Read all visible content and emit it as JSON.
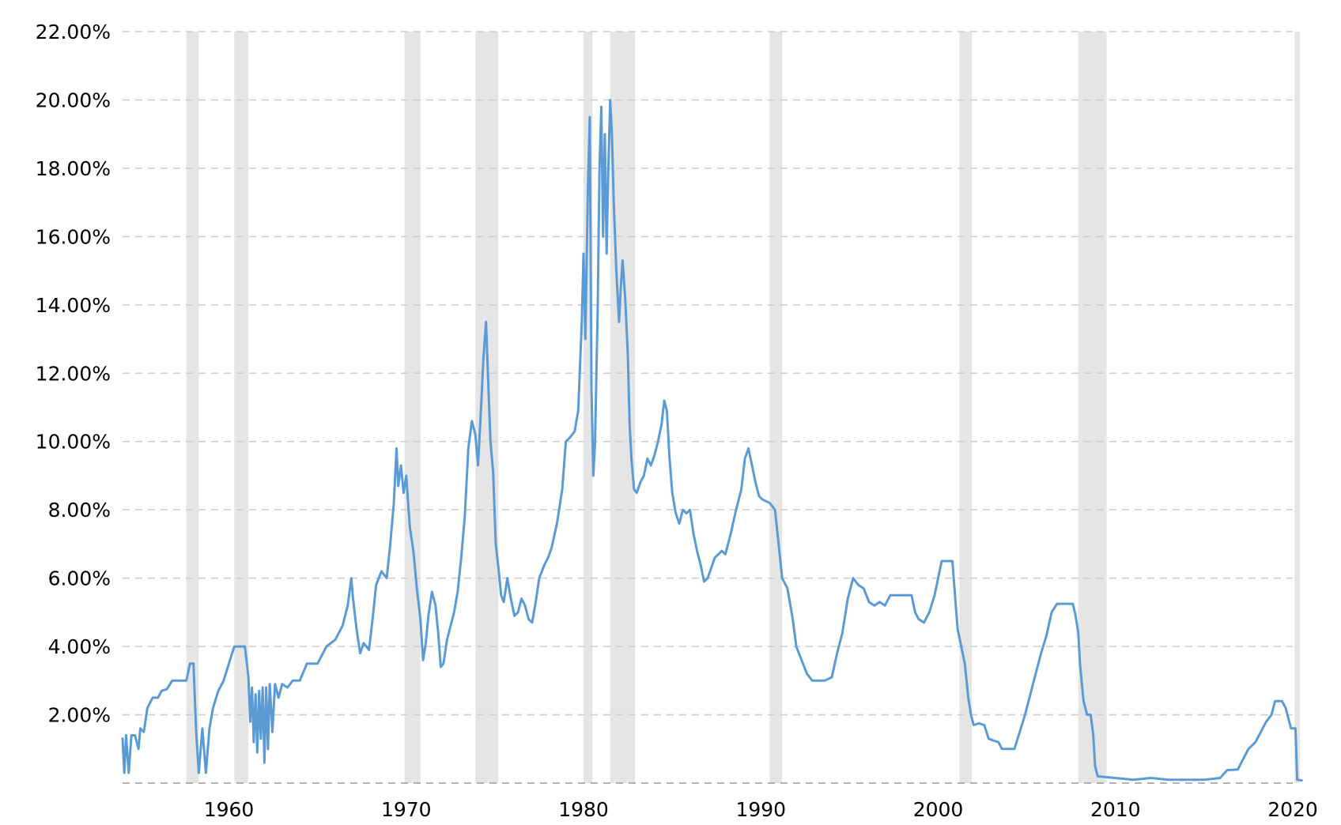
{
  "chart_data": {
    "type": "line",
    "title": "",
    "xlabel": "",
    "ylabel": "",
    "x_axis": {
      "type": "year",
      "range": [
        1954.0,
        2020.0
      ],
      "tick_labels": [
        "1960",
        "1970",
        "1980",
        "1990",
        "2000",
        "2010",
        "2020"
      ],
      "ticks": [
        1960,
        1970,
        1980,
        1990,
        2000,
        2010,
        2020
      ]
    },
    "y_axis": {
      "range": [
        0,
        22
      ],
      "tick_labels": [
        "2.00%",
        "4.00%",
        "6.00%",
        "8.00%",
        "10.00%",
        "12.00%",
        "14.00%",
        "16.00%",
        "18.00%",
        "20.00%",
        "22.00%"
      ],
      "ticks": [
        2,
        4,
        6,
        8,
        10,
        12,
        14,
        16,
        18,
        20,
        22
      ]
    },
    "grid": {
      "horizontal": true,
      "style": "dashed"
    },
    "legend": "none",
    "colors": {
      "line": "#5b9bd5",
      "recession_band": "#e5e5e5",
      "grid": "#cccccc",
      "baseline": "#999999"
    },
    "recession_bands": [
      [
        1957.6,
        1958.3
      ],
      [
        1960.3,
        1961.1
      ],
      [
        1969.9,
        1970.8
      ],
      [
        1973.9,
        1975.2
      ],
      [
        1980.0,
        1980.5
      ],
      [
        1981.5,
        1982.9
      ],
      [
        1990.5,
        1991.2
      ],
      [
        2001.2,
        2001.9
      ],
      [
        2007.9,
        2009.5
      ],
      [
        2020.1,
        2020.4
      ]
    ],
    "series": [
      {
        "values": [
          [
            1954.0,
            1.3
          ],
          [
            1954.1,
            0.3
          ],
          [
            1954.2,
            1.4
          ],
          [
            1954.35,
            0.3
          ],
          [
            1954.5,
            1.4
          ],
          [
            1954.7,
            1.4
          ],
          [
            1954.9,
            1.0
          ],
          [
            1955.0,
            1.6
          ],
          [
            1955.2,
            1.5
          ],
          [
            1955.4,
            2.2
          ],
          [
            1955.7,
            2.5
          ],
          [
            1956.0,
            2.5
          ],
          [
            1956.2,
            2.7
          ],
          [
            1956.5,
            2.75
          ],
          [
            1956.8,
            3.0
          ],
          [
            1957.2,
            3.0
          ],
          [
            1957.6,
            3.0
          ],
          [
            1957.8,
            3.5
          ],
          [
            1958.0,
            3.5
          ],
          [
            1958.15,
            1.5
          ],
          [
            1958.3,
            0.3
          ],
          [
            1958.5,
            1.6
          ],
          [
            1958.7,
            0.3
          ],
          [
            1958.9,
            1.6
          ],
          [
            1959.1,
            2.2
          ],
          [
            1959.4,
            2.7
          ],
          [
            1959.7,
            3.0
          ],
          [
            1960.0,
            3.5
          ],
          [
            1960.3,
            4.0
          ],
          [
            1960.9,
            4.0
          ],
          [
            1961.1,
            3.1
          ],
          [
            1961.2,
            1.8
          ],
          [
            1961.3,
            2.8
          ],
          [
            1961.4,
            1.2
          ],
          [
            1961.5,
            2.6
          ],
          [
            1961.6,
            0.9
          ],
          [
            1961.7,
            2.7
          ],
          [
            1961.8,
            1.3
          ],
          [
            1961.9,
            2.8
          ],
          [
            1962.0,
            0.6
          ],
          [
            1962.1,
            2.8
          ],
          [
            1962.2,
            1.0
          ],
          [
            1962.3,
            2.9
          ],
          [
            1962.45,
            1.5
          ],
          [
            1962.6,
            2.9
          ],
          [
            1962.8,
            2.5
          ],
          [
            1963.0,
            2.9
          ],
          [
            1963.3,
            2.8
          ],
          [
            1963.6,
            3.0
          ],
          [
            1964.0,
            3.0
          ],
          [
            1964.4,
            3.5
          ],
          [
            1965.0,
            3.5
          ],
          [
            1965.5,
            4.0
          ],
          [
            1966.0,
            4.2
          ],
          [
            1966.4,
            4.6
          ],
          [
            1966.7,
            5.2
          ],
          [
            1966.9,
            6.0
          ],
          [
            1967.0,
            5.4
          ],
          [
            1967.2,
            4.5
          ],
          [
            1967.4,
            3.8
          ],
          [
            1967.6,
            4.1
          ],
          [
            1967.9,
            3.9
          ],
          [
            1968.1,
            4.8
          ],
          [
            1968.3,
            5.8
          ],
          [
            1968.6,
            6.2
          ],
          [
            1968.9,
            6.0
          ],
          [
            1969.1,
            7.0
          ],
          [
            1969.3,
            8.2
          ],
          [
            1969.45,
            9.8
          ],
          [
            1969.55,
            8.7
          ],
          [
            1969.7,
            9.3
          ],
          [
            1969.85,
            8.5
          ],
          [
            1970.0,
            9.0
          ],
          [
            1970.2,
            7.5
          ],
          [
            1970.4,
            6.8
          ],
          [
            1970.6,
            5.7
          ],
          [
            1970.8,
            4.8
          ],
          [
            1970.95,
            3.6
          ],
          [
            1971.1,
            4.1
          ],
          [
            1971.25,
            4.9
          ],
          [
            1971.45,
            5.6
          ],
          [
            1971.65,
            5.2
          ],
          [
            1971.8,
            4.4
          ],
          [
            1971.95,
            3.4
          ],
          [
            1972.1,
            3.5
          ],
          [
            1972.3,
            4.2
          ],
          [
            1972.5,
            4.6
          ],
          [
            1972.7,
            5.0
          ],
          [
            1972.9,
            5.6
          ],
          [
            1973.1,
            6.6
          ],
          [
            1973.3,
            7.8
          ],
          [
            1973.5,
            9.8
          ],
          [
            1973.7,
            10.6
          ],
          [
            1973.9,
            10.2
          ],
          [
            1974.05,
            9.3
          ],
          [
            1974.2,
            10.8
          ],
          [
            1974.35,
            12.4
          ],
          [
            1974.5,
            13.5
          ],
          [
            1974.6,
            12.1
          ],
          [
            1974.75,
            10.0
          ],
          [
            1974.9,
            9.1
          ],
          [
            1975.05,
            7.0
          ],
          [
            1975.2,
            6.3
          ],
          [
            1975.35,
            5.5
          ],
          [
            1975.5,
            5.3
          ],
          [
            1975.7,
            6.0
          ],
          [
            1975.9,
            5.4
          ],
          [
            1976.1,
            4.9
          ],
          [
            1976.3,
            5.0
          ],
          [
            1976.5,
            5.4
          ],
          [
            1976.7,
            5.2
          ],
          [
            1976.9,
            4.8
          ],
          [
            1977.1,
            4.7
          ],
          [
            1977.3,
            5.3
          ],
          [
            1977.5,
            6.0
          ],
          [
            1977.8,
            6.4
          ],
          [
            1978.0,
            6.6
          ],
          [
            1978.2,
            6.9
          ],
          [
            1978.5,
            7.6
          ],
          [
            1978.8,
            8.6
          ],
          [
            1979.0,
            10.0
          ],
          [
            1979.2,
            10.1
          ],
          [
            1979.5,
            10.3
          ],
          [
            1979.7,
            10.9
          ],
          [
            1979.9,
            13.5
          ],
          [
            1980.0,
            15.5
          ],
          [
            1980.1,
            13.0
          ],
          [
            1980.25,
            17.5
          ],
          [
            1980.35,
            19.5
          ],
          [
            1980.45,
            11.5
          ],
          [
            1980.55,
            9.0
          ],
          [
            1980.65,
            10.0
          ],
          [
            1980.8,
            14.0
          ],
          [
            1980.9,
            18.0
          ],
          [
            1981.0,
            19.8
          ],
          [
            1981.1,
            16.0
          ],
          [
            1981.2,
            19.0
          ],
          [
            1981.3,
            15.5
          ],
          [
            1981.4,
            18.0
          ],
          [
            1981.5,
            20.0
          ],
          [
            1981.6,
            19.0
          ],
          [
            1981.7,
            17.0
          ],
          [
            1981.85,
            15.0
          ],
          [
            1982.0,
            13.5
          ],
          [
            1982.1,
            14.5
          ],
          [
            1982.2,
            15.3
          ],
          [
            1982.35,
            14.2
          ],
          [
            1982.5,
            12.5
          ],
          [
            1982.6,
            10.5
          ],
          [
            1982.7,
            9.5
          ],
          [
            1982.85,
            8.6
          ],
          [
            1983.0,
            8.5
          ],
          [
            1983.2,
            8.8
          ],
          [
            1983.4,
            9.0
          ],
          [
            1983.6,
            9.5
          ],
          [
            1983.8,
            9.3
          ],
          [
            1984.0,
            9.6
          ],
          [
            1984.2,
            10.0
          ],
          [
            1984.4,
            10.5
          ],
          [
            1984.55,
            11.2
          ],
          [
            1984.7,
            10.9
          ],
          [
            1984.85,
            9.5
          ],
          [
            1985.0,
            8.5
          ],
          [
            1985.2,
            7.9
          ],
          [
            1985.4,
            7.6
          ],
          [
            1985.6,
            8.0
          ],
          [
            1985.8,
            7.9
          ],
          [
            1986.0,
            8.0
          ],
          [
            1986.2,
            7.3
          ],
          [
            1986.4,
            6.8
          ],
          [
            1986.6,
            6.4
          ],
          [
            1986.8,
            5.9
          ],
          [
            1987.0,
            6.0
          ],
          [
            1987.2,
            6.3
          ],
          [
            1987.4,
            6.6
          ],
          [
            1987.6,
            6.7
          ],
          [
            1987.8,
            6.8
          ],
          [
            1988.0,
            6.7
          ],
          [
            1988.3,
            7.3
          ],
          [
            1988.6,
            8.0
          ],
          [
            1988.9,
            8.6
          ],
          [
            1989.1,
            9.5
          ],
          [
            1989.3,
            9.8
          ],
          [
            1989.5,
            9.3
          ],
          [
            1989.7,
            8.8
          ],
          [
            1989.9,
            8.4
          ],
          [
            1990.1,
            8.3
          ],
          [
            1990.5,
            8.2
          ],
          [
            1990.8,
            8.0
          ],
          [
            1991.0,
            7.0
          ],
          [
            1991.2,
            6.0
          ],
          [
            1991.5,
            5.7
          ],
          [
            1991.8,
            4.8
          ],
          [
            1992.0,
            4.0
          ],
          [
            1992.3,
            3.6
          ],
          [
            1992.6,
            3.2
          ],
          [
            1992.9,
            3.0
          ],
          [
            1993.2,
            3.0
          ],
          [
            1993.6,
            3.0
          ],
          [
            1994.0,
            3.1
          ],
          [
            1994.3,
            3.8
          ],
          [
            1994.6,
            4.4
          ],
          [
            1994.9,
            5.4
          ],
          [
            1995.2,
            6.0
          ],
          [
            1995.5,
            5.8
          ],
          [
            1995.8,
            5.7
          ],
          [
            1996.1,
            5.3
          ],
          [
            1996.4,
            5.2
          ],
          [
            1996.7,
            5.3
          ],
          [
            1997.0,
            5.2
          ],
          [
            1997.3,
            5.5
          ],
          [
            1997.6,
            5.5
          ],
          [
            1997.9,
            5.5
          ],
          [
            1998.2,
            5.5
          ],
          [
            1998.5,
            5.5
          ],
          [
            1998.7,
            5.0
          ],
          [
            1998.9,
            4.8
          ],
          [
            1999.2,
            4.7
          ],
          [
            1999.5,
            5.0
          ],
          [
            1999.8,
            5.5
          ],
          [
            2000.0,
            6.0
          ],
          [
            2000.2,
            6.5
          ],
          [
            2000.5,
            6.5
          ],
          [
            2000.8,
            6.5
          ],
          [
            2000.95,
            5.5
          ],
          [
            2001.1,
            4.5
          ],
          [
            2001.3,
            4.0
          ],
          [
            2001.5,
            3.5
          ],
          [
            2001.7,
            2.5
          ],
          [
            2001.85,
            2.0
          ],
          [
            2002.0,
            1.7
          ],
          [
            2002.3,
            1.75
          ],
          [
            2002.6,
            1.7
          ],
          [
            2002.85,
            1.3
          ],
          [
            2003.1,
            1.25
          ],
          [
            2003.4,
            1.2
          ],
          [
            2003.6,
            1.0
          ],
          [
            2003.9,
            1.0
          ],
          [
            2004.3,
            1.0
          ],
          [
            2004.6,
            1.5
          ],
          [
            2004.9,
            2.0
          ],
          [
            2005.2,
            2.6
          ],
          [
            2005.5,
            3.2
          ],
          [
            2005.8,
            3.8
          ],
          [
            2006.1,
            4.3
          ],
          [
            2006.4,
            5.0
          ],
          [
            2006.7,
            5.25
          ],
          [
            2007.0,
            5.25
          ],
          [
            2007.3,
            5.25
          ],
          [
            2007.6,
            5.25
          ],
          [
            2007.75,
            4.9
          ],
          [
            2007.9,
            4.4
          ],
          [
            2008.0,
            3.5
          ],
          [
            2008.2,
            2.4
          ],
          [
            2008.4,
            2.0
          ],
          [
            2008.6,
            2.0
          ],
          [
            2008.75,
            1.4
          ],
          [
            2008.85,
            0.5
          ],
          [
            2009.0,
            0.2
          ],
          [
            2010.0,
            0.15
          ],
          [
            2011.0,
            0.1
          ],
          [
            2012.0,
            0.15
          ],
          [
            2013.0,
            0.1
          ],
          [
            2014.0,
            0.1
          ],
          [
            2015.0,
            0.1
          ],
          [
            2015.9,
            0.15
          ],
          [
            2016.3,
            0.38
          ],
          [
            2016.9,
            0.4
          ],
          [
            2017.2,
            0.7
          ],
          [
            2017.5,
            1.0
          ],
          [
            2017.9,
            1.2
          ],
          [
            2018.2,
            1.5
          ],
          [
            2018.5,
            1.8
          ],
          [
            2018.8,
            2.0
          ],
          [
            2019.0,
            2.4
          ],
          [
            2019.4,
            2.4
          ],
          [
            2019.6,
            2.2
          ],
          [
            2019.75,
            1.9
          ],
          [
            2019.9,
            1.6
          ],
          [
            2020.15,
            1.6
          ],
          [
            2020.25,
            0.1
          ],
          [
            2020.5,
            0.08
          ]
        ]
      }
    ]
  }
}
